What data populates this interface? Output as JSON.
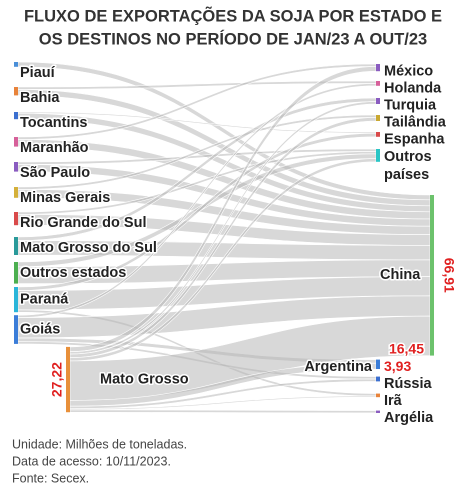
{
  "chart_data": {
    "type": "sankey",
    "title": [
      "FLUXO DE EXPORTAÇÕES DA SOJA POR ESTADO E",
      "OS DESTINOS NO PERÍODO DE JAN/23 A OUT/23"
    ],
    "sources": [
      {
        "name": "Piauí",
        "color": "#4a8fd8"
      },
      {
        "name": "Bahia",
        "color": "#e8833a"
      },
      {
        "name": "Tocantins",
        "color": "#3b6fd0"
      },
      {
        "name": "Maranhão",
        "color": "#d6609a"
      },
      {
        "name": "São Paulo",
        "color": "#8a5cc0"
      },
      {
        "name": "Minas Gerais",
        "color": "#d4b03a"
      },
      {
        "name": "Rio Grande do Sul",
        "color": "#d94a4a"
      },
      {
        "name": "Mato Grosso do Sul",
        "color": "#2a9a9a"
      },
      {
        "name": "Outros estados",
        "color": "#4caf50"
      },
      {
        "name": "Paraná",
        "color": "#2ab5d9"
      },
      {
        "name": "Goiás",
        "color": "#3b7dd8"
      },
      {
        "name": "Mato Grosso",
        "color": "#e8903a",
        "value": 27.22,
        "value_label": "27,22"
      }
    ],
    "targets": [
      {
        "name": "México",
        "color": "#8a5cc0"
      },
      {
        "name": "Holanda",
        "color": "#d6609a"
      },
      {
        "name": "Turquia",
        "color": "#8a5cc0"
      },
      {
        "name": "Tailândia",
        "color": "#c9a832"
      },
      {
        "name": "Espanha",
        "color": "#d94a4a"
      },
      {
        "name": "Outros países",
        "color": "#2ac5c5"
      },
      {
        "name": "China",
        "color": "#6cc26c",
        "value": 66.91,
        "value_label": "66,91"
      },
      {
        "name": "Argentina",
        "color": "#3b7dd8",
        "value": 3.93,
        "value_label": "3,93"
      },
      {
        "name": "Rússia",
        "color": "#3b6fd0"
      },
      {
        "name": "Irã",
        "color": "#e8833a"
      },
      {
        "name": "Argélia",
        "color": "#8a5cc0"
      }
    ],
    "links": [
      {
        "source": "Piauí",
        "target": "China",
        "value": 2
      },
      {
        "source": "Bahia",
        "target": "Holanda",
        "value": 1
      },
      {
        "source": "Bahia",
        "target": "China",
        "value": 2.5
      },
      {
        "source": "Tocantins",
        "target": "Espanha",
        "value": 0.5
      },
      {
        "source": "Tocantins",
        "target": "China",
        "value": 2.5
      },
      {
        "source": "Maranhão",
        "target": "México",
        "value": 1
      },
      {
        "source": "Maranhão",
        "target": "China",
        "value": 3
      },
      {
        "source": "São Paulo",
        "target": "Outros países",
        "value": 1
      },
      {
        "source": "São Paulo",
        "target": "China",
        "value": 3
      },
      {
        "source": "Minas Gerais",
        "target": "Tailândia",
        "value": 1
      },
      {
        "source": "Minas Gerais",
        "target": "China",
        "value": 3.5
      },
      {
        "source": "Rio Grande do Sul",
        "target": "Outros países",
        "value": 1
      },
      {
        "source": "Rio Grande do Sul",
        "target": "China",
        "value": 4.5
      },
      {
        "source": "Mato Grosso do Sul",
        "target": "Turquia",
        "value": 1.5
      },
      {
        "source": "Mato Grosso do Sul",
        "target": "China",
        "value": 6
      },
      {
        "source": "Outros estados",
        "target": "Outros países",
        "value": 2
      },
      {
        "source": "Outros estados",
        "target": "China",
        "value": 7
      },
      {
        "source": "Paraná",
        "target": "Espanha",
        "value": 1.5
      },
      {
        "source": "Paraná",
        "target": "China",
        "value": 8
      },
      {
        "source": "Paraná",
        "target": "Irã",
        "value": 1
      },
      {
        "source": "Goiás",
        "target": "Holanda",
        "value": 1
      },
      {
        "source": "Goiás",
        "target": "China",
        "value": 8.46
      },
      {
        "source": "Goiás",
        "target": "Argentina",
        "value": 1.5
      },
      {
        "source": "Goiás",
        "target": "Rússia",
        "value": 1
      },
      {
        "source": "Mato Grosso",
        "target": "México",
        "value": 2
      },
      {
        "source": "Mato Grosso",
        "target": "Turquia",
        "value": 1
      },
      {
        "source": "Mato Grosso",
        "target": "Tailândia",
        "value": 1.5
      },
      {
        "source": "Mato Grosso",
        "target": "Outros países",
        "value": 1.34
      },
      {
        "source": "Mato Grosso",
        "target": "China",
        "value": 16.45,
        "value_label": "16,45"
      },
      {
        "source": "Mato Grosso",
        "target": "Argentina",
        "value": 2.43
      },
      {
        "source": "Mato Grosso",
        "target": "Rússia",
        "value": 1
      },
      {
        "source": "Mato Grosso",
        "target": "Irã",
        "value": 0.5
      },
      {
        "source": "Mato Grosso",
        "target": "Argélia",
        "value": 1
      }
    ],
    "notes": [
      "Unidade: Milhões de toneladas.",
      "Data de acesso: 10/11/2023.",
      "Fonte: Secex."
    ]
  }
}
